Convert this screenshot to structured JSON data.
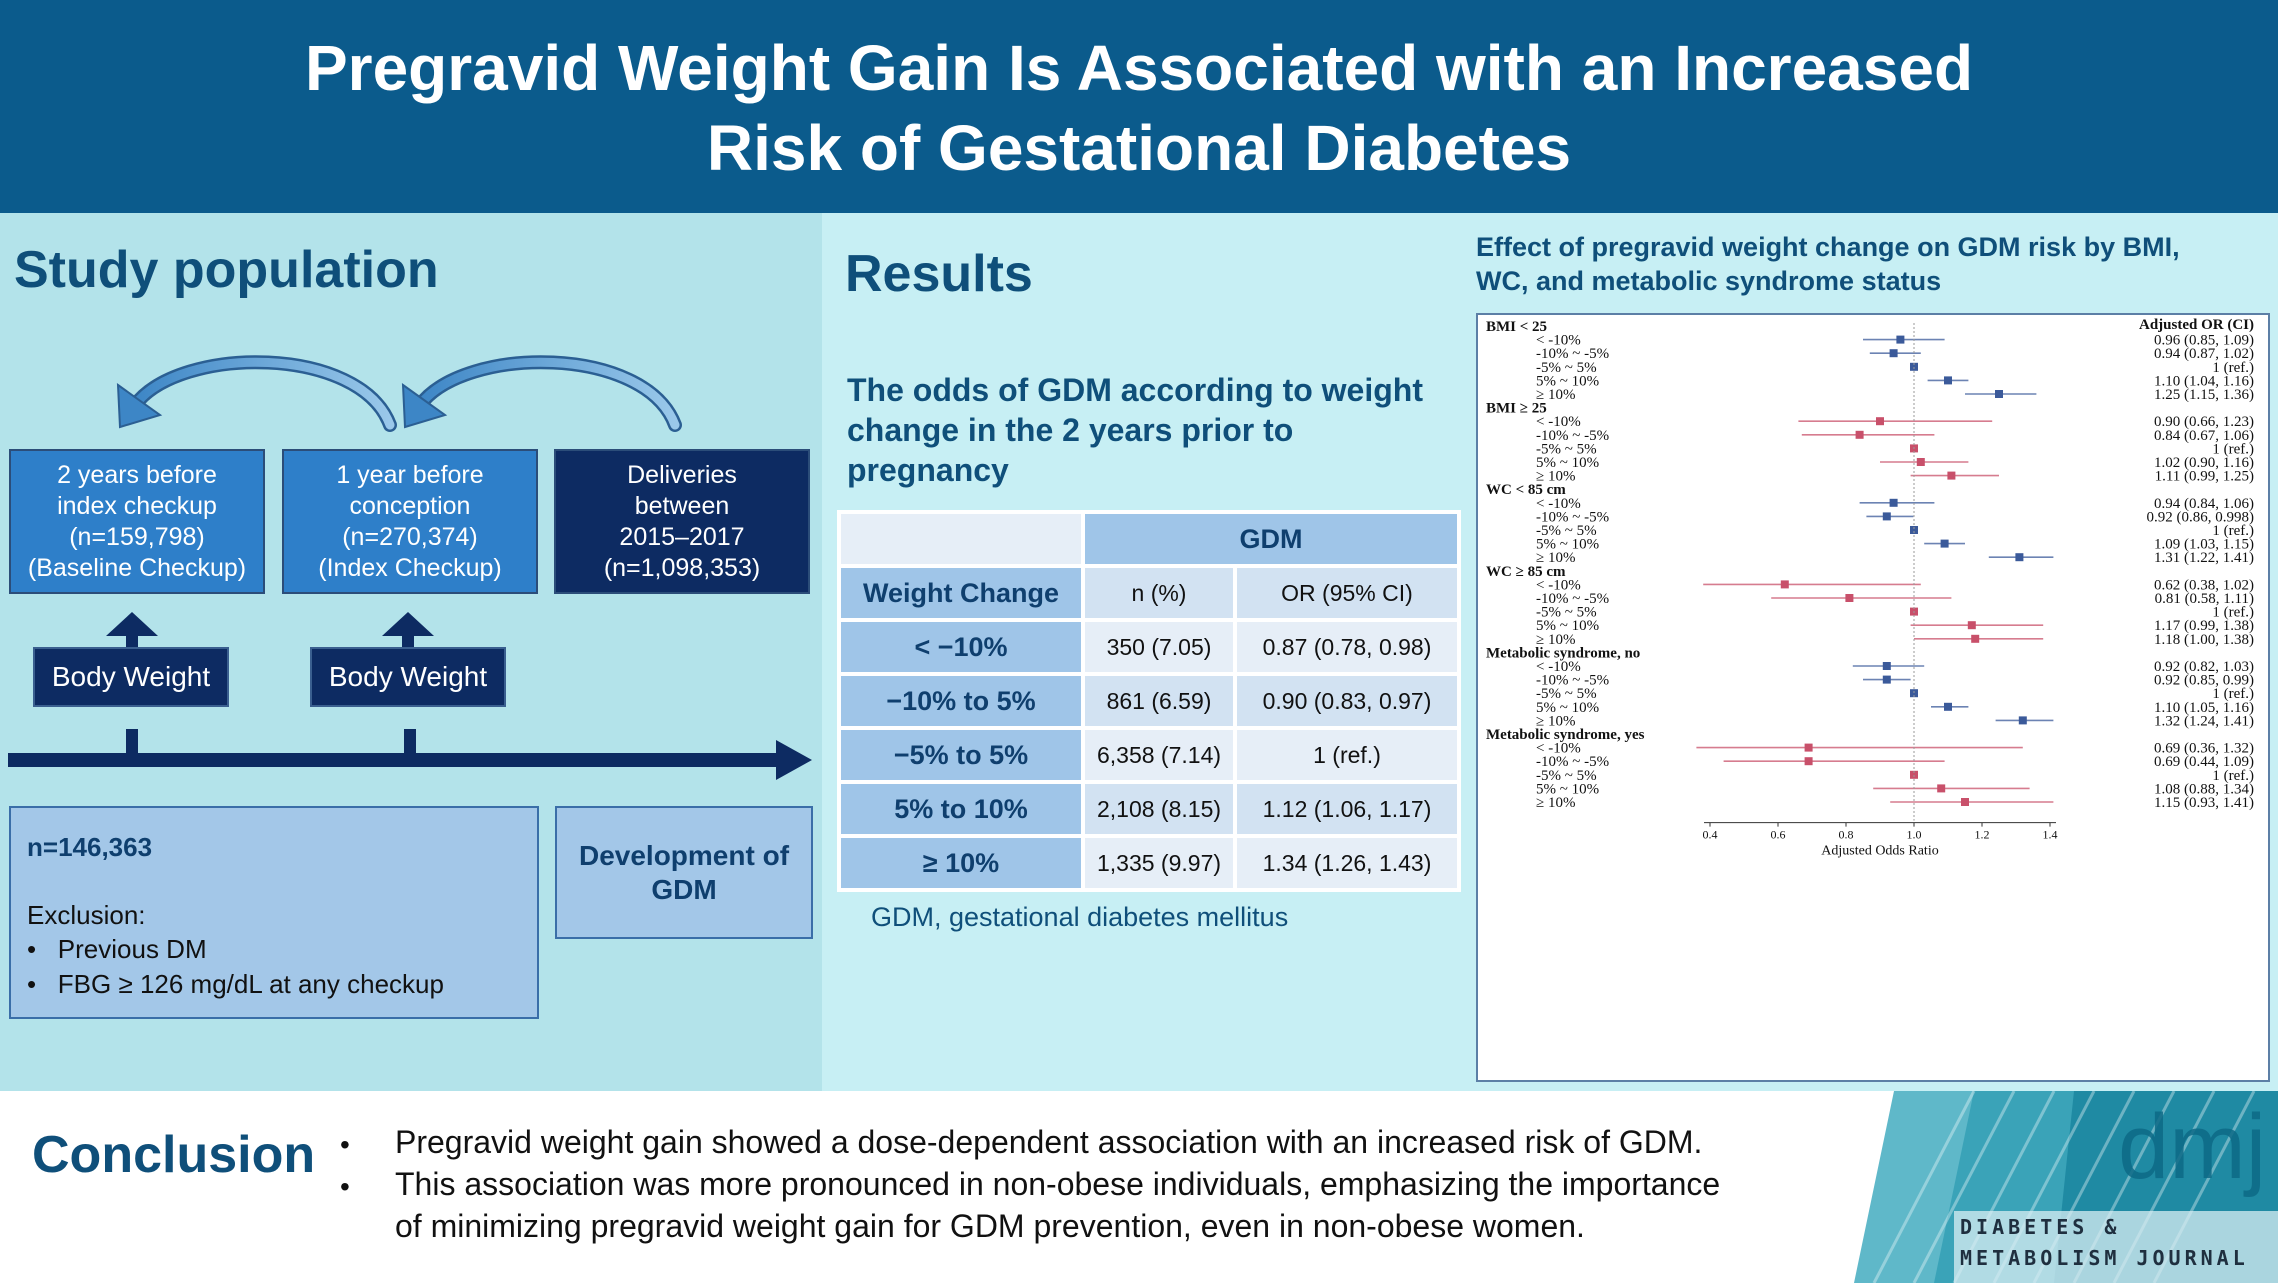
{
  "header": {
    "title_line1": "Pregravid Weight Gain Is Associated with an Increased",
    "title_line2": "Risk of Gestational Diabetes"
  },
  "study": {
    "title": "Study population",
    "box1": [
      "2 years before",
      "index checkup",
      "(n=159,798)",
      "(Baseline Checkup)"
    ],
    "box2": [
      "1 year before",
      "conception",
      "(n=270,374)",
      "(Index Checkup)"
    ],
    "box3": [
      "Deliveries",
      "between",
      "2015–2017",
      "(n=1,098,353)"
    ],
    "body_weight_1": "Body Weight",
    "body_weight_2": "Body Weight",
    "cohort_n": "n=146,363",
    "exclusion_label": "Exclusion:",
    "exclusions": [
      "Previous DM",
      "FBG ≥ 126 mg/dL at any checkup"
    ],
    "outcome": [
      "Development of",
      "GDM"
    ]
  },
  "results": {
    "title": "Results",
    "subtitle": [
      "The odds of GDM according to weight",
      "change in the 2 years prior to",
      "pregnancy"
    ],
    "table_group": "GDM",
    "col_headers": [
      "Weight Change",
      "n (%)",
      "OR (95% CI)"
    ],
    "rows": [
      {
        "label": "< −10%",
        "n": "350 (7.05)",
        "or": "0.87 (0.78, 0.98)"
      },
      {
        "label": "−10% to 5%",
        "n": "861 (6.59)",
        "or": "0.90 (0.83, 0.97)"
      },
      {
        "label": "−5% to 5%",
        "n": "6,358 (7.14)",
        "or": "1 (ref.)"
      },
      {
        "label": "5% to 10%",
        "n": "2,108 (8.15)",
        "or": "1.12 (1.06, 1.17)"
      },
      {
        "label": "≥ 10%",
        "n": "1,335 (9.97)",
        "or": "1.34 (1.26, 1.43)"
      }
    ],
    "footnote": "GDM, gestational diabetes mellitus"
  },
  "forest": {
    "title": [
      "Effect of pregravid weight change on GDM risk by BMI,",
      "WC, and metabolic syndrome status"
    ],
    "or_header": "Adjusted OR (CI)",
    "xlabel": "Adjusted Odds Ratio",
    "x_ticks": [
      "0.4",
      "0.6",
      "0.8",
      "1.0",
      "1.2",
      "1.4"
    ],
    "x_range": [
      0.4,
      1.4
    ],
    "colors": {
      "blue": "#3b5a9a",
      "red": "#c8506a"
    },
    "groups": [
      {
        "name": "BMI < 25",
        "color": "blue",
        "rows": [
          {
            "label": "< -10%",
            "or": 0.96,
            "lo": 0.85,
            "hi": 1.09,
            "text": "0.96 (0.85, 1.09)"
          },
          {
            "label": "-10% ~ -5%",
            "or": 0.94,
            "lo": 0.87,
            "hi": 1.02,
            "text": "0.94 (0.87, 1.02)"
          },
          {
            "label": "-5% ~ 5%",
            "or": 1.0,
            "lo": 1.0,
            "hi": 1.0,
            "text": "1 (ref.)"
          },
          {
            "label": "5% ~ 10%",
            "or": 1.1,
            "lo": 1.04,
            "hi": 1.16,
            "text": "1.10 (1.04, 1.16)"
          },
          {
            "label": "≥ 10%",
            "or": 1.25,
            "lo": 1.15,
            "hi": 1.36,
            "text": "1.25 (1.15, 1.36)"
          }
        ]
      },
      {
        "name": "BMI ≥ 25",
        "color": "red",
        "rows": [
          {
            "label": "< -10%",
            "or": 0.9,
            "lo": 0.66,
            "hi": 1.23,
            "text": "0.90 (0.66, 1.23)"
          },
          {
            "label": "-10% ~ -5%",
            "or": 0.84,
            "lo": 0.67,
            "hi": 1.06,
            "text": "0.84 (0.67, 1.06)"
          },
          {
            "label": "-5% ~ 5%",
            "or": 1.0,
            "lo": 1.0,
            "hi": 1.0,
            "text": "1 (ref.)"
          },
          {
            "label": "5% ~ 10%",
            "or": 1.02,
            "lo": 0.9,
            "hi": 1.16,
            "text": "1.02 (0.90, 1.16)"
          },
          {
            "label": "≥ 10%",
            "or": 1.11,
            "lo": 0.99,
            "hi": 1.25,
            "text": "1.11 (0.99, 1.25)"
          }
        ]
      },
      {
        "name": "WC < 85 cm",
        "color": "blue",
        "rows": [
          {
            "label": "< -10%",
            "or": 0.94,
            "lo": 0.84,
            "hi": 1.06,
            "text": "0.94 (0.84, 1.06)"
          },
          {
            "label": "-10% ~ -5%",
            "or": 0.92,
            "lo": 0.86,
            "hi": 0.998,
            "text": "0.92 (0.86, 0.998)"
          },
          {
            "label": "-5% ~ 5%",
            "or": 1.0,
            "lo": 1.0,
            "hi": 1.0,
            "text": "1 (ref.)"
          },
          {
            "label": "5% ~ 10%",
            "or": 1.09,
            "lo": 1.03,
            "hi": 1.15,
            "text": "1.09 (1.03, 1.15)"
          },
          {
            "label": "≥ 10%",
            "or": 1.31,
            "lo": 1.22,
            "hi": 1.41,
            "text": "1.31 (1.22, 1.41)"
          }
        ]
      },
      {
        "name": "WC ≥ 85 cm",
        "color": "red",
        "rows": [
          {
            "label": "< -10%",
            "or": 0.62,
            "lo": 0.38,
            "hi": 1.02,
            "text": "0.62 (0.38, 1.02)"
          },
          {
            "label": "-10% ~ -5%",
            "or": 0.81,
            "lo": 0.58,
            "hi": 1.11,
            "text": "0.81 (0.58, 1.11)"
          },
          {
            "label": "-5% ~ 5%",
            "or": 1.0,
            "lo": 1.0,
            "hi": 1.0,
            "text": "1 (ref.)"
          },
          {
            "label": "5% ~ 10%",
            "or": 1.17,
            "lo": 0.99,
            "hi": 1.38,
            "text": "1.17 (0.99, 1.38)"
          },
          {
            "label": "≥ 10%",
            "or": 1.18,
            "lo": 1.0,
            "hi": 1.38,
            "text": "1.18 (1.00, 1.38)"
          }
        ]
      },
      {
        "name": "Metabolic syndrome, no",
        "color": "blue",
        "rows": [
          {
            "label": "< -10%",
            "or": 0.92,
            "lo": 0.82,
            "hi": 1.03,
            "text": "0.92 (0.82, 1.03)"
          },
          {
            "label": "-10% ~ -5%",
            "or": 0.92,
            "lo": 0.85,
            "hi": 0.99,
            "text": "0.92 (0.85, 0.99)"
          },
          {
            "label": "-5% ~ 5%",
            "or": 1.0,
            "lo": 1.0,
            "hi": 1.0,
            "text": "1 (ref.)"
          },
          {
            "label": "5% ~ 10%",
            "or": 1.1,
            "lo": 1.05,
            "hi": 1.16,
            "text": "1.10 (1.05, 1.16)"
          },
          {
            "label": "≥ 10%",
            "or": 1.32,
            "lo": 1.24,
            "hi": 1.41,
            "text": "1.32 (1.24, 1.41)"
          }
        ]
      },
      {
        "name": "Metabolic syndrome, yes",
        "color": "red",
        "rows": [
          {
            "label": "< -10%",
            "or": 0.69,
            "lo": 0.36,
            "hi": 1.32,
            "text": "0.69 (0.36, 1.32)"
          },
          {
            "label": "-10% ~ -5%",
            "or": 0.69,
            "lo": 0.44,
            "hi": 1.09,
            "text": "0.69 (0.44, 1.09)"
          },
          {
            "label": "-5% ~ 5%",
            "or": 1.0,
            "lo": 1.0,
            "hi": 1.0,
            "text": "1 (ref.)"
          },
          {
            "label": "5% ~ 10%",
            "or": 1.08,
            "lo": 0.88,
            "hi": 1.34,
            "text": "1.08 (0.88, 1.34)"
          },
          {
            "label": "≥ 10%",
            "or": 1.15,
            "lo": 0.93,
            "hi": 1.41,
            "text": "1.15 (0.93, 1.41)"
          }
        ]
      }
    ]
  },
  "conclusion": {
    "title": "Conclusion",
    "bullets": [
      "Pregravid weight gain showed a dose-dependent association with an increased risk of GDM.",
      "This association was more pronounced in non-obese individuals, emphasizing the importance",
      "of minimizing pregravid weight gain for GDM prevention, even in non-obese women."
    ]
  },
  "logo": {
    "mark": "dmj",
    "line1": "DIABETES &",
    "line2": "METABOLISM JOURNAL"
  }
}
